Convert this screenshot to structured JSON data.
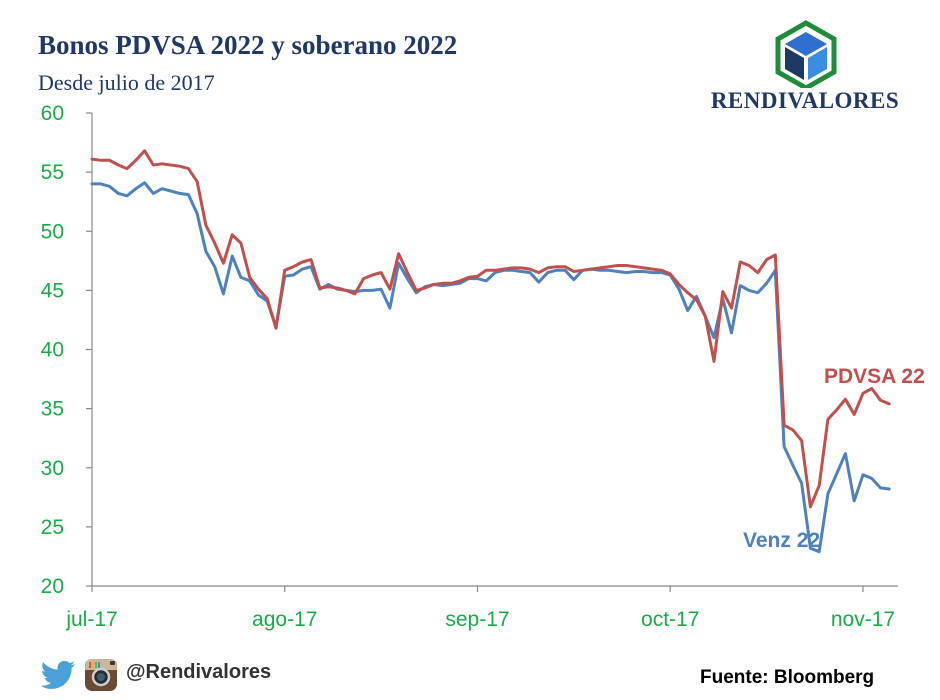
{
  "header": {
    "title": "Bonos PDVSA 2022  y soberano 2022",
    "subtitle": "Desde julio de 2017"
  },
  "logo": {
    "text": "RENDIVALORES",
    "icon": "cube-logo-icon"
  },
  "footer": {
    "handle": "@Rendivalores",
    "source": "Fuente: Bloomberg",
    "icons": [
      "twitter-icon",
      "instagram-icon"
    ]
  },
  "colors": {
    "pdvsa": "#c0504d",
    "venz": "#4f81bd",
    "ticks": "#1aab48",
    "title": "#1f3864"
  },
  "chart_data": {
    "type": "line",
    "title": "Bonos PDVSA 2022  y soberano 2022",
    "subtitle": "Desde julio de 2017",
    "xlabel": "",
    "ylabel": "",
    "ylim": [
      20,
      60
    ],
    "yticks": [
      "20",
      "25",
      "30",
      "35",
      "40",
      "45",
      "50",
      "55",
      "60"
    ],
    "xticks": [
      "jul-17",
      "ago-17",
      "sep-17",
      "oct-17",
      "nov-17"
    ],
    "x_unit": "trading days since start of July 2017 (each month = 22 days)",
    "xlim": [
      0,
      92
    ],
    "grid": false,
    "series": [
      {
        "name": "PDVSA 22",
        "color": "#c0504d",
        "x": [
          0,
          1,
          2,
          3,
          4,
          5,
          6,
          7,
          8,
          9,
          10,
          11,
          12,
          13,
          14,
          15,
          16,
          17,
          18,
          19,
          20,
          21,
          22,
          23,
          24,
          25,
          26,
          27,
          28,
          29,
          30,
          31,
          32,
          33,
          34,
          35,
          36,
          37,
          38,
          39,
          40,
          41,
          42,
          43,
          44,
          45,
          46,
          47,
          48,
          49,
          50,
          51,
          52,
          53,
          54,
          55,
          56,
          57,
          58,
          59,
          60,
          61,
          62,
          63,
          64,
          65,
          66,
          67,
          68,
          69,
          70,
          71,
          72,
          73,
          74,
          75,
          76,
          77,
          78,
          79,
          80,
          81,
          82,
          83,
          84,
          85,
          86,
          87,
          88,
          89,
          90,
          91
        ],
        "values": [
          56.1,
          56.0,
          56.0,
          55.6,
          55.3,
          56.0,
          56.8,
          55.6,
          55.7,
          55.6,
          55.5,
          55.3,
          54.2,
          50.5,
          49.0,
          47.3,
          49.7,
          49.0,
          46.1,
          45.1,
          44.3,
          41.8,
          46.7,
          47.0,
          47.4,
          47.6,
          45.2,
          45.3,
          45.2,
          45.0,
          44.7,
          46.0,
          46.3,
          46.5,
          45.1,
          48.1,
          46.5,
          45.0,
          45.2,
          45.5,
          45.6,
          45.6,
          45.8,
          46.1,
          46.2,
          46.7,
          46.7,
          46.8,
          46.9,
          46.9,
          46.8,
          46.5,
          46.9,
          47.0,
          47.0,
          46.6,
          46.7,
          46.8,
          46.9,
          47.0,
          47.1,
          47.1,
          47.0,
          46.9,
          46.8,
          46.7,
          46.4,
          45.5,
          44.8,
          44.2,
          42.8,
          39.0,
          44.9,
          43.5,
          47.4,
          47.1,
          46.5,
          47.6,
          48.0,
          33.6,
          33.2,
          32.3,
          26.7,
          28.5,
          34.1,
          34.9,
          35.8,
          34.5,
          36.3,
          36.7,
          35.7,
          35.4
        ]
      },
      {
        "name": "Venz 22",
        "color": "#4f81bd",
        "x": [
          0,
          1,
          2,
          3,
          4,
          5,
          6,
          7,
          8,
          9,
          10,
          11,
          12,
          13,
          14,
          15,
          16,
          17,
          18,
          19,
          20,
          21,
          22,
          23,
          24,
          25,
          26,
          27,
          28,
          29,
          30,
          31,
          32,
          33,
          34,
          35,
          36,
          37,
          38,
          39,
          40,
          41,
          42,
          43,
          44,
          45,
          46,
          47,
          48,
          49,
          50,
          51,
          52,
          53,
          54,
          55,
          56,
          57,
          58,
          59,
          60,
          61,
          62,
          63,
          64,
          65,
          66,
          67,
          68,
          69,
          70,
          71,
          72,
          73,
          74,
          75,
          76,
          77,
          78,
          79,
          80,
          81,
          82,
          83,
          84,
          85,
          86,
          87,
          88,
          89,
          90,
          91
        ],
        "values": [
          54.0,
          54.0,
          53.8,
          53.2,
          53.0,
          53.6,
          54.1,
          53.2,
          53.6,
          53.4,
          53.2,
          53.1,
          51.5,
          48.3,
          47.0,
          44.7,
          47.9,
          46.1,
          45.8,
          44.6,
          44.1,
          41.9,
          46.2,
          46.3,
          46.8,
          47.0,
          45.1,
          45.5,
          45.1,
          45.0,
          44.9,
          45.0,
          45.0,
          45.1,
          43.5,
          47.3,
          46.0,
          44.8,
          45.3,
          45.5,
          45.4,
          45.5,
          45.6,
          46.0,
          46.0,
          45.8,
          46.5,
          46.7,
          46.7,
          46.6,
          46.5,
          45.7,
          46.5,
          46.7,
          46.7,
          45.9,
          46.7,
          46.8,
          46.7,
          46.7,
          46.6,
          46.5,
          46.6,
          46.6,
          46.5,
          46.5,
          46.3,
          45.1,
          43.3,
          44.5,
          42.8,
          41.0,
          44.3,
          41.4,
          45.4,
          45.0,
          44.8,
          45.6,
          46.7,
          31.8,
          30.2,
          28.7,
          23.2,
          22.9,
          27.8,
          29.5,
          31.2,
          27.2,
          29.4,
          29.1,
          28.3,
          28.2
        ]
      }
    ],
    "labels": [
      {
        "text": "PDVSA 22",
        "series": "PDVSA 22"
      },
      {
        "text": "Venz 22",
        "series": "Venz 22"
      }
    ]
  }
}
